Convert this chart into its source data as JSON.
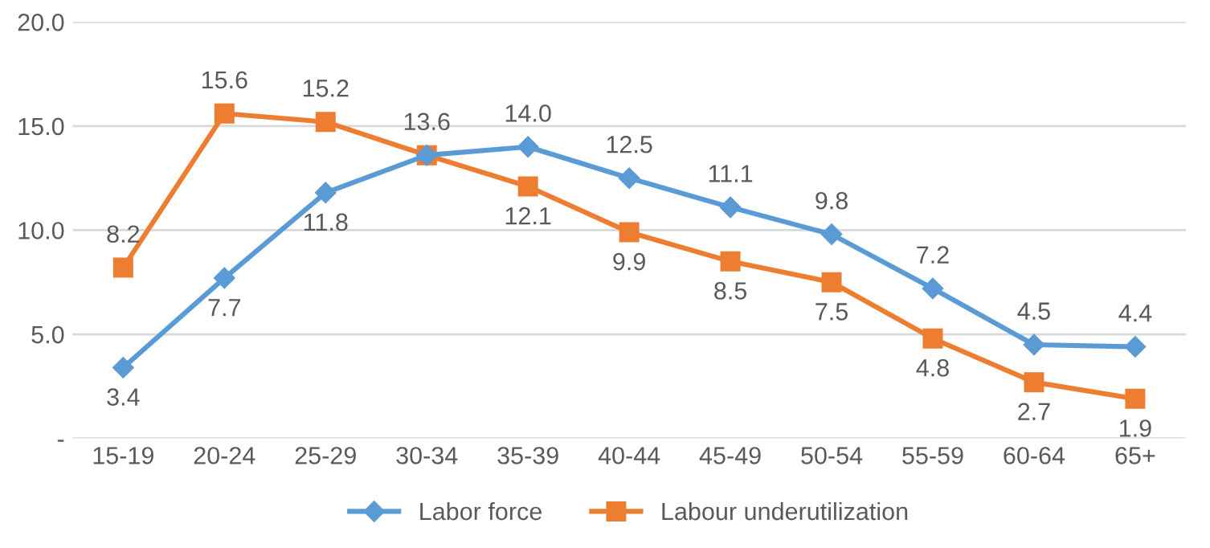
{
  "chart_data": {
    "type": "line",
    "categories": [
      "15-19",
      "20-24",
      "25-29",
      "30-34",
      "35-39",
      "40-44",
      "45-49",
      "50-54",
      "55-59",
      "60-64",
      "65+"
    ],
    "series": [
      {
        "name": "Labor force",
        "color": "#5b9bd5",
        "marker": "diamond",
        "values": [
          3.4,
          7.7,
          11.8,
          13.6,
          14.0,
          12.5,
          11.1,
          9.8,
          7.2,
          4.5,
          4.4
        ],
        "value_labels": [
          "3.4",
          "7.7",
          "11.8",
          null,
          "14.0",
          "12.5",
          "11.1",
          "9.8",
          "7.2",
          "4.5",
          "4.4"
        ]
      },
      {
        "name": "Labour underutilization",
        "color": "#ed7d31",
        "marker": "square",
        "values": [
          8.2,
          15.6,
          15.2,
          13.6,
          12.1,
          9.9,
          8.5,
          7.5,
          4.8,
          2.7,
          1.9
        ],
        "value_labels": [
          "8.2",
          "15.6",
          "15.2",
          "13.6",
          "12.1",
          "9.9",
          "8.5",
          "7.5",
          "4.8",
          "2.7",
          "1.9"
        ]
      }
    ],
    "ylim": [
      0,
      20
    ],
    "yticks": [
      {
        "value": 0,
        "label": "-"
      },
      {
        "value": 5,
        "label": "5.0"
      },
      {
        "value": 10,
        "label": "10.0"
      },
      {
        "value": 15,
        "label": "15.0"
      },
      {
        "value": 20,
        "label": "20.0"
      }
    ],
    "grid": "y",
    "legend": "bottom"
  }
}
